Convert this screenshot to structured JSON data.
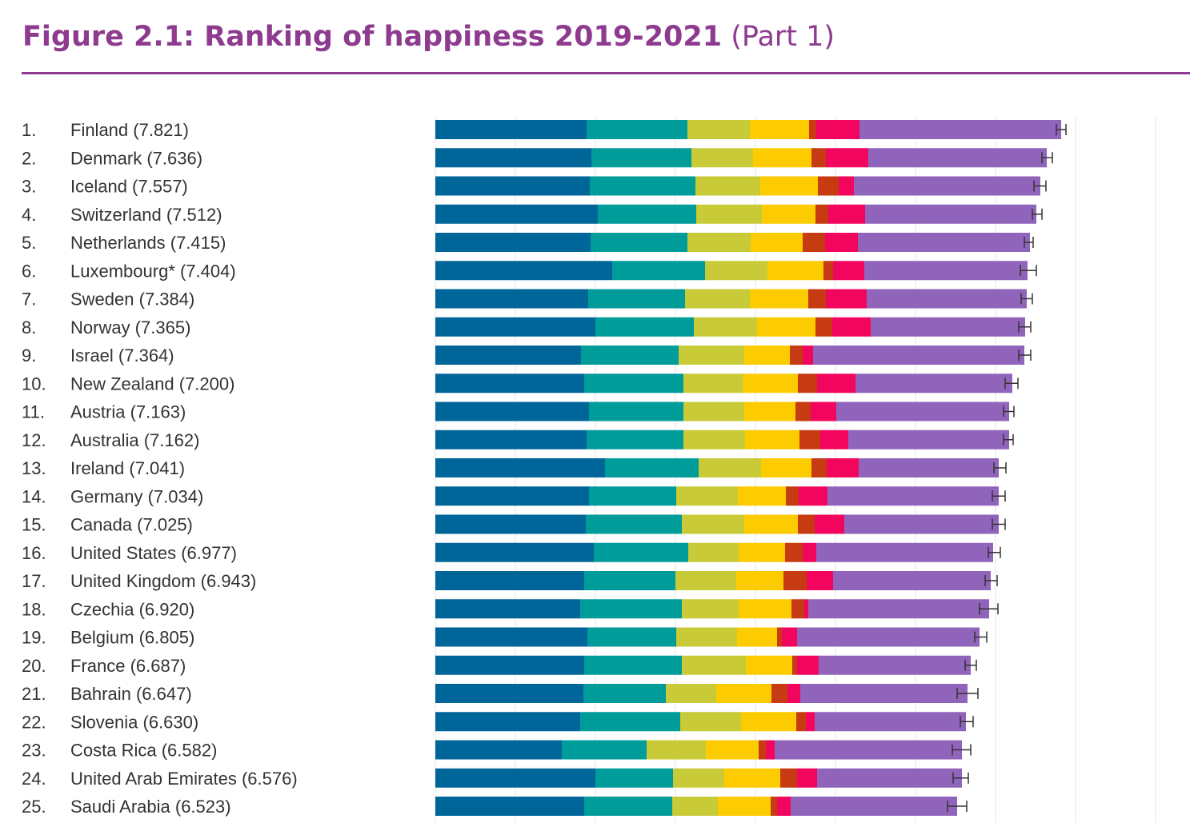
{
  "title": {
    "main": "Figure 2.1: Ranking of happiness 2019-2021",
    "part": "(Part 1)"
  },
  "colors": {
    "title": "#8e3a8f",
    "segments": [
      "#00669a",
      "#009c9a",
      "#c8cb37",
      "#fccb00",
      "#c63b12",
      "#f2055c",
      "#9164bb"
    ],
    "gridline": "#e6e6e6",
    "errorbar": "#333333"
  },
  "chart_data": {
    "type": "bar",
    "orientation": "horizontal",
    "stacked": true,
    "error_bars": true,
    "categories": [
      "1.",
      "2.",
      "3.",
      "4.",
      "5.",
      "6.",
      "7.",
      "8.",
      "9.",
      "10.",
      "11.",
      "12.",
      "13.",
      "14.",
      "15.",
      "16.",
      "17.",
      "18.",
      "19.",
      "20.",
      "21.",
      "22.",
      "23.",
      "24.",
      "25."
    ],
    "labels": [
      "Finland (7.821)",
      "Denmark (7.636)",
      "Iceland (7.557)",
      "Switzerland (7.512)",
      "Netherlands (7.415)",
      "Luxembourg* (7.404)",
      "Sweden (7.384)",
      "Norway (7.365)",
      "Israel (7.364)",
      "New Zealand (7.200)",
      "Austria (7.163)",
      "Australia (7.162)",
      "Ireland (7.041)",
      "Germany (7.034)",
      "Canada (7.025)",
      "United States (6.977)",
      "United Kingdom (6.943)",
      "Czechia (6.920)",
      "Belgium (6.805)",
      "France (6.687)",
      "Bahrain (6.647)",
      "Slovenia (6.630)",
      "Costa Rica (6.582)",
      "United Arab Emirates (6.576)",
      "Saudi Arabia (6.523)"
    ],
    "segment_values": [
      [
        1.89,
        1.26,
        0.78,
        0.74,
        0.09,
        0.54,
        2.52
      ],
      [
        1.95,
        1.25,
        0.77,
        0.73,
        0.18,
        0.53,
        2.23
      ],
      [
        1.93,
        1.32,
        0.81,
        0.72,
        0.26,
        0.19,
        2.33
      ],
      [
        2.03,
        1.23,
        0.82,
        0.67,
        0.16,
        0.46,
        2.14
      ],
      [
        1.94,
        1.21,
        0.79,
        0.65,
        0.28,
        0.41,
        2.15
      ],
      [
        2.21,
        1.16,
        0.78,
        0.7,
        0.12,
        0.39,
        2.04
      ],
      [
        1.91,
        1.21,
        0.81,
        0.73,
        0.22,
        0.51,
        2.0
      ],
      [
        2.0,
        1.23,
        0.79,
        0.73,
        0.21,
        0.48,
        1.93
      ],
      [
        1.82,
        1.22,
        0.82,
        0.57,
        0.16,
        0.13,
        2.64
      ],
      [
        1.86,
        1.24,
        0.74,
        0.69,
        0.24,
        0.48,
        1.96
      ],
      [
        1.92,
        1.18,
        0.76,
        0.64,
        0.19,
        0.32,
        2.16
      ],
      [
        1.89,
        1.21,
        0.77,
        0.68,
        0.26,
        0.35,
        2.01
      ],
      [
        2.12,
        1.17,
        0.78,
        0.63,
        0.19,
        0.4,
        1.75
      ],
      [
        1.92,
        1.09,
        0.77,
        0.6,
        0.16,
        0.36,
        2.14
      ],
      [
        1.88,
        1.2,
        0.78,
        0.67,
        0.21,
        0.37,
        1.93
      ],
      [
        1.98,
        1.18,
        0.63,
        0.58,
        0.22,
        0.17,
        2.21
      ],
      [
        1.86,
        1.14,
        0.76,
        0.59,
        0.29,
        0.33,
        1.97
      ],
      [
        1.81,
        1.27,
        0.71,
        0.66,
        0.16,
        0.05,
        2.26
      ],
      [
        1.9,
        1.11,
        0.76,
        0.5,
        0.06,
        0.19,
        2.28
      ],
      [
        1.86,
        1.22,
        0.8,
        0.58,
        0.06,
        0.27,
        1.9
      ],
      [
        1.85,
        1.03,
        0.63,
        0.69,
        0.2,
        0.16,
        2.09
      ],
      [
        1.81,
        1.25,
        0.76,
        0.69,
        0.12,
        0.11,
        1.89
      ],
      [
        1.58,
        1.06,
        0.74,
        0.66,
        0.09,
        0.11,
        2.34
      ],
      [
        2.0,
        0.97,
        0.64,
        0.7,
        0.21,
        0.25,
        1.81
      ],
      [
        1.86,
        1.1,
        0.57,
        0.66,
        0.08,
        0.17,
        2.08
      ]
    ],
    "error_bars_range": [
      [
        7.76,
        7.88
      ],
      [
        7.58,
        7.71
      ],
      [
        7.48,
        7.63
      ],
      [
        7.46,
        7.58
      ],
      [
        7.36,
        7.47
      ],
      [
        7.31,
        7.51
      ],
      [
        7.32,
        7.46
      ],
      [
        7.29,
        7.44
      ],
      [
        7.29,
        7.44
      ],
      [
        7.12,
        7.28
      ],
      [
        7.1,
        7.23
      ],
      [
        7.1,
        7.22
      ],
      [
        6.98,
        7.13
      ],
      [
        6.96,
        7.12
      ],
      [
        6.96,
        7.12
      ],
      [
        6.91,
        7.06
      ],
      [
        6.87,
        7.02
      ],
      [
        6.8,
        7.03
      ],
      [
        6.74,
        6.89
      ],
      [
        6.62,
        6.76
      ],
      [
        6.52,
        6.78
      ],
      [
        6.56,
        6.72
      ],
      [
        6.46,
        6.69
      ],
      [
        6.47,
        6.66
      ],
      [
        6.4,
        6.64
      ]
    ],
    "xlim": [
      0,
      9
    ],
    "grid": true,
    "legend": "none"
  }
}
